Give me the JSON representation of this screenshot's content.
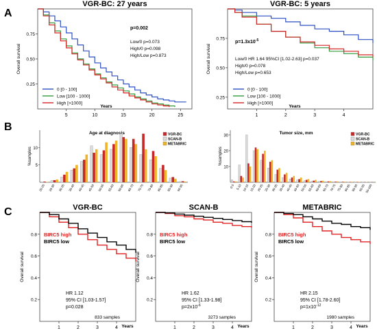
{
  "panels": [
    {
      "letter": "A"
    },
    {
      "letter": "B"
    },
    {
      "letter": "C"
    }
  ],
  "chart_data": [
    {
      "id": "km-27y",
      "type": "line",
      "title": "VGR-BC: 27 years",
      "xlabel": "Years",
      "ylabel": "Overall survival",
      "xlim": [
        0,
        27
      ],
      "ylim": [
        0,
        1.0
      ],
      "xticks": [
        "5",
        "10",
        "15",
        "20",
        "25"
      ],
      "xtick_values": [
        5,
        10,
        15,
        20,
        25
      ],
      "yticks": [
        "0.25",
        "0.50",
        "0.75"
      ],
      "ytick_values": [
        0.25,
        0.5,
        0.75
      ],
      "annotations": [
        "p=0.002",
        "Low/0  p=0.073",
        "High/0 p=0.098",
        "High/Low p=0.873"
      ],
      "legend_entries": [
        "0 [0 - 100]",
        "Low  [100 - 1000]",
        "High  [>1000]"
      ],
      "legend_position": "bottom-left",
      "series": [
        {
          "name": "0 [0 - 100]",
          "color": "#2b4fc2",
          "x": [
            0,
            1,
            2,
            3,
            4,
            5,
            6,
            7,
            8,
            9,
            10,
            11,
            12,
            13,
            14,
            15,
            16,
            17,
            18,
            19,
            20,
            21,
            22,
            23,
            24,
            25,
            26
          ],
          "y": [
            1.0,
            0.97,
            0.93,
            0.88,
            0.82,
            0.76,
            0.7,
            0.64,
            0.58,
            0.52,
            0.46,
            0.41,
            0.37,
            0.33,
            0.29,
            0.25,
            0.22,
            0.19,
            0.16,
            0.14,
            0.12,
            0.1,
            0.09,
            0.08,
            0.07,
            0.07,
            0.07
          ]
        },
        {
          "name": "Low  [100 - 1000]",
          "color": "#2e9a3a",
          "x": [
            0,
            1,
            2,
            3,
            4,
            5,
            6,
            7,
            8,
            9,
            10,
            11,
            12,
            13,
            14,
            15,
            16,
            17,
            18,
            19,
            20,
            21,
            22,
            23,
            24
          ],
          "y": [
            1.0,
            0.94,
            0.86,
            0.78,
            0.7,
            0.63,
            0.56,
            0.5,
            0.45,
            0.4,
            0.35,
            0.31,
            0.27,
            0.24,
            0.21,
            0.18,
            0.15,
            0.12,
            0.1,
            0.08,
            0.06,
            0.05,
            0.04,
            0.03,
            0.02
          ]
        },
        {
          "name": "High  [>1000]",
          "color": "#d42424",
          "x": [
            0,
            1,
            2,
            3,
            4,
            5,
            6,
            7,
            8,
            9,
            10,
            11,
            12,
            13,
            14,
            15,
            16,
            17,
            18,
            19,
            20,
            21,
            22,
            23
          ],
          "y": [
            1.0,
            0.93,
            0.84,
            0.76,
            0.68,
            0.61,
            0.55,
            0.49,
            0.44,
            0.39,
            0.34,
            0.3,
            0.26,
            0.22,
            0.19,
            0.16,
            0.13,
            0.11,
            0.09,
            0.07,
            0.05,
            0.04,
            0.03,
            0.02
          ]
        }
      ]
    },
    {
      "id": "km-5y",
      "type": "line",
      "title": "VGR-BC: 5 years",
      "xlabel": "Years",
      "ylabel": "Overall survival",
      "xlim": [
        0,
        5
      ],
      "ylim": [
        0.15,
        1.0
      ],
      "xticks": [
        "1",
        "2",
        "3",
        "4"
      ],
      "xtick_values": [
        1,
        2,
        3,
        4
      ],
      "yticks": [
        "0.25",
        "0.50",
        "0.75"
      ],
      "ytick_values": [
        0.25,
        0.5,
        0.75
      ],
      "annotation_p": "p=1.3x10",
      "annotation_p_exp": "-5",
      "annotations": [
        "Low/0  HR 1.64 95%CI [1.02-2.63] p=0.037",
        "High/0 p=0.078",
        "High/Low p=0.653"
      ],
      "legend_entries": [
        "0 [0 - 100]",
        "Low  [100 - 1000]",
        "High  [>1000]"
      ],
      "legend_position": "bottom-left",
      "series": [
        {
          "name": "0 [0 - 100]",
          "color": "#2b4fc2",
          "x": [
            0,
            0.25,
            0.5,
            1,
            1.5,
            2,
            2.5,
            3,
            3.5,
            4,
            4.5,
            5
          ],
          "y": [
            1.0,
            0.99,
            0.97,
            0.94,
            0.92,
            0.89,
            0.86,
            0.83,
            0.81,
            0.78,
            0.74,
            0.71
          ]
        },
        {
          "name": "Low  [100 - 1000]",
          "color": "#2e9a3a",
          "x": [
            0,
            0.25,
            0.5,
            1,
            1.5,
            2,
            2.5,
            3,
            3.5,
            4,
            4.5,
            5
          ],
          "y": [
            1.0,
            0.97,
            0.94,
            0.87,
            0.81,
            0.76,
            0.71,
            0.67,
            0.64,
            0.62,
            0.59,
            0.56
          ]
        },
        {
          "name": "High  [>1000]",
          "color": "#d42424",
          "x": [
            0,
            0.25,
            0.5,
            1,
            1.5,
            2,
            2.5,
            3,
            3.5,
            4,
            4.5,
            5
          ],
          "y": [
            1.0,
            0.97,
            0.93,
            0.87,
            0.81,
            0.76,
            0.72,
            0.69,
            0.66,
            0.64,
            0.61,
            0.59
          ]
        }
      ]
    },
    {
      "id": "age-hist",
      "type": "bar",
      "title": "Age at diagnosis",
      "ylabel": "%samples",
      "ylim": [
        0,
        15
      ],
      "yticks": [
        "5",
        "10"
      ],
      "ytick_values": [
        5,
        10
      ],
      "categories": [
        "20-25",
        "25-30",
        "30-35",
        "35-40",
        "40-45",
        "45-50",
        "50-55",
        "55-60",
        "60-65",
        "65-70",
        "70-75",
        "75-80",
        "80-85",
        "85-90",
        "90-95"
      ],
      "legend_entries": [
        "VGR-BC",
        "SCAN-B",
        "METABRIC"
      ],
      "legend_position": "top-right",
      "series": [
        {
          "name": "VGR-BC",
          "color": "#c62828",
          "values": [
            0.2,
            0.6,
            2.2,
            4.0,
            6.5,
            8.5,
            9.2,
            11.0,
            13.0,
            12.5,
            14.0,
            9.0,
            5.0,
            1.5,
            0.3
          ]
        },
        {
          "name": "SCAN-B",
          "color": "#dcdcdc",
          "values": [
            0.1,
            0.5,
            1.5,
            3.5,
            6.0,
            10.5,
            8.0,
            9.5,
            14.0,
            10.0,
            8.0,
            6.5,
            4.0,
            1.2,
            0.2
          ]
        },
        {
          "name": "METABRIC",
          "color": "#f0b429",
          "values": [
            0.1,
            0.8,
            3.0,
            5.0,
            8.0,
            9.5,
            11.5,
            12.0,
            12.5,
            11.0,
            9.5,
            7.5,
            3.5,
            1.0,
            0.2
          ]
        }
      ]
    },
    {
      "id": "size-hist",
      "type": "bar",
      "title": "Tumor size, mm",
      "ylabel": "%samples",
      "ylim": [
        0,
        33
      ],
      "yticks": [
        "10",
        "20",
        "30"
      ],
      "ytick_values": [
        10,
        20,
        30
      ],
      "categories": [
        "0-5",
        "5-10",
        "10-15",
        "15-20",
        "20-25",
        "25-30",
        "30-35",
        "35-40",
        "40-45",
        "45-50",
        "50-55",
        "55-60",
        "60-65",
        "65-70",
        "70-75",
        "75-80",
        "80-85",
        "85-90",
        "90-95",
        "95-100"
      ],
      "legend_entries": [
        "VGR-BC",
        "SCAN-B",
        "METABRIC"
      ],
      "legend_position": "top-right",
      "series": [
        {
          "name": "VGR-BC",
          "color": "#c62828",
          "values": [
            0.5,
            4.0,
            12.0,
            22.0,
            18.0,
            13.0,
            8.0,
            5.0,
            3.0,
            2.0,
            1.5,
            1.0,
            0.8,
            0.5,
            0.4,
            0.3,
            0.2,
            0.2,
            0.1,
            0.1
          ]
        },
        {
          "name": "SCAN-B",
          "color": "#dcdcdc",
          "values": [
            1.5,
            11.0,
            30.0,
            20.0,
            14.0,
            9.0,
            5.0,
            3.0,
            2.0,
            1.5,
            1.0,
            0.7,
            0.5,
            0.3,
            0.2,
            0.2,
            0.1,
            0.1,
            0.1,
            0.1
          ]
        },
        {
          "name": "METABRIC",
          "color": "#f0b429",
          "values": [
            0.5,
            3.0,
            10.0,
            21.0,
            20.0,
            14.0,
            9.0,
            6.0,
            4.0,
            3.0,
            2.0,
            1.5,
            1.0,
            0.7,
            0.5,
            0.4,
            0.3,
            0.2,
            0.2,
            0.1
          ]
        }
      ]
    },
    {
      "id": "km-c-vgr",
      "type": "line",
      "title": "VGR-BC",
      "xlabel": "Years",
      "ylabel": "Overall survival",
      "xlim": [
        0,
        5
      ],
      "ylim": [
        0,
        1.0
      ],
      "xticks": [
        "1",
        "2",
        "3",
        "4"
      ],
      "xtick_values": [
        1,
        2,
        3,
        4
      ],
      "yticks": [
        "0.2",
        "0.4",
        "0.6",
        "0.8"
      ],
      "ytick_values": [
        0.2,
        0.4,
        0.6,
        0.8
      ],
      "legend_entries": [
        "BIRC5 high",
        "BIRC5 low"
      ],
      "legend_colors": [
        "#e02020",
        "#000000"
      ],
      "stats": [
        "HR 1.12",
        "95% CI [1.03-1.57]",
        "p=0.028"
      ],
      "stats_pexp": "",
      "samples": "833 samples",
      "series": [
        {
          "name": "BIRC5 high",
          "color": "#e02020",
          "x": [
            0,
            0.5,
            1,
            1.5,
            2,
            2.5,
            3,
            3.5,
            4,
            4.5,
            5
          ],
          "y": [
            1.0,
            0.96,
            0.91,
            0.86,
            0.8,
            0.75,
            0.7,
            0.66,
            0.62,
            0.58,
            0.55
          ]
        },
        {
          "name": "BIRC5 low",
          "color": "#000000",
          "x": [
            0,
            0.5,
            1,
            1.5,
            2,
            2.5,
            3,
            3.5,
            4,
            4.5,
            5
          ],
          "y": [
            1.0,
            0.98,
            0.94,
            0.9,
            0.85,
            0.81,
            0.77,
            0.73,
            0.7,
            0.66,
            0.63
          ]
        }
      ]
    },
    {
      "id": "km-c-scanb",
      "type": "line",
      "title": "SCAN-B",
      "xlabel": "Years",
      "ylabel": "Overall survival",
      "xlim": [
        0,
        5
      ],
      "ylim": [
        0,
        1.0
      ],
      "xticks": [
        "1",
        "2",
        "3",
        "4"
      ],
      "xtick_values": [
        1,
        2,
        3,
        4
      ],
      "yticks": [
        "0.2",
        "0.4",
        "0.6",
        "0.8"
      ],
      "ytick_values": [
        0.2,
        0.4,
        0.6,
        0.8
      ],
      "legend_entries": [
        "BIRC5 high",
        "BIRC5 low"
      ],
      "legend_colors": [
        "#e02020",
        "#000000"
      ],
      "stats": [
        "HR 1.62",
        "95% CI [1.33-1.98]",
        "p=2x10"
      ],
      "stats_pexp": "-6",
      "samples": "3273 samples",
      "series": [
        {
          "name": "BIRC5 high",
          "color": "#e02020",
          "x": [
            0,
            0.5,
            1,
            1.5,
            2,
            2.5,
            3,
            3.5,
            4,
            4.5,
            5
          ],
          "y": [
            1.0,
            0.99,
            0.97,
            0.96,
            0.94,
            0.93,
            0.91,
            0.9,
            0.88,
            0.87,
            0.86
          ]
        },
        {
          "name": "BIRC5 low",
          "color": "#000000",
          "x": [
            0,
            0.5,
            1,
            1.5,
            2,
            2.5,
            3,
            3.5,
            4,
            4.5,
            5
          ],
          "y": [
            1.0,
            0.995,
            0.985,
            0.975,
            0.965,
            0.955,
            0.945,
            0.935,
            0.925,
            0.915,
            0.905
          ]
        }
      ]
    },
    {
      "id": "km-c-metabric",
      "type": "line",
      "title": "METABRIC",
      "xlabel": "Years",
      "ylabel": "Overall survival",
      "xlim": [
        0,
        5
      ],
      "ylim": [
        0,
        1.0
      ],
      "xticks": [
        "1",
        "2",
        "3",
        "4"
      ],
      "xtick_values": [
        1,
        2,
        3,
        4
      ],
      "yticks": [
        "0.2",
        "0.4",
        "0.6",
        "0.8"
      ],
      "ytick_values": [
        0.2,
        0.4,
        0.6,
        0.8
      ],
      "legend_entries": [
        "BIRC5 high",
        "BIRC5 low"
      ],
      "legend_colors": [
        "#e02020",
        "#000000"
      ],
      "stats": [
        "HR 2.15",
        "95% CI [1.78-2.60]",
        "p=1x10"
      ],
      "stats_pexp": "-12",
      "samples": "1980 samples",
      "series": [
        {
          "name": "BIRC5 high",
          "color": "#e02020",
          "x": [
            0,
            0.5,
            1,
            1.5,
            2,
            2.5,
            3,
            3.5,
            4,
            4.5,
            5
          ],
          "y": [
            1.0,
            0.98,
            0.95,
            0.91,
            0.87,
            0.83,
            0.8,
            0.77,
            0.75,
            0.73,
            0.71
          ]
        },
        {
          "name": "BIRC5 low",
          "color": "#000000",
          "x": [
            0,
            0.5,
            1,
            1.5,
            2,
            2.5,
            3,
            3.5,
            4,
            4.5,
            5
          ],
          "y": [
            1.0,
            0.99,
            0.98,
            0.96,
            0.94,
            0.92,
            0.9,
            0.89,
            0.87,
            0.86,
            0.84
          ]
        }
      ]
    }
  ]
}
